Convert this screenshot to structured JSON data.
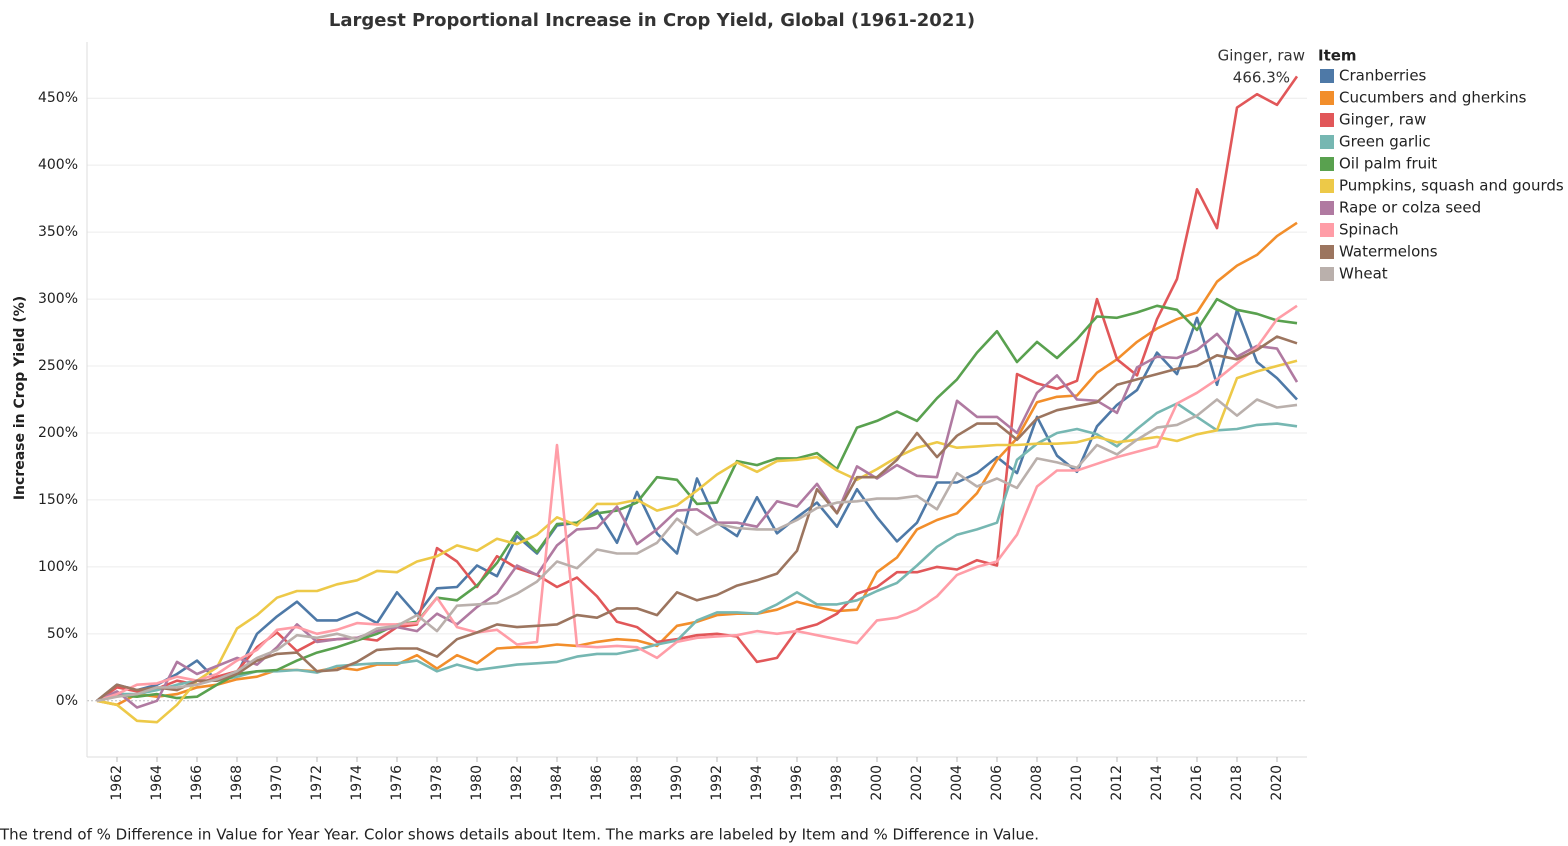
{
  "chart_data": {
    "type": "line",
    "title": "Largest Proportional Increase in Crop Yield, Global (1961-2021)",
    "y_label": "Increase in Crop Yield (%)",
    "legend_title": "Item",
    "legend_position": "right",
    "caption": "The trend of % Difference in Value for Year Year.  Color shows details about Item.  The marks are labeled by Item and % Difference in Value.",
    "grid": true,
    "x": [
      1961,
      1962,
      1963,
      1964,
      1965,
      1966,
      1967,
      1968,
      1969,
      1970,
      1971,
      1972,
      1973,
      1974,
      1975,
      1976,
      1977,
      1978,
      1979,
      1980,
      1981,
      1982,
      1983,
      1984,
      1985,
      1986,
      1987,
      1988,
      1989,
      1990,
      1991,
      1992,
      1993,
      1994,
      1995,
      1996,
      1997,
      1998,
      1999,
      2000,
      2001,
      2002,
      2003,
      2004,
      2005,
      2006,
      2007,
      2008,
      2009,
      2010,
      2011,
      2012,
      2013,
      2014,
      2015,
      2016,
      2017,
      2018,
      2019,
      2020,
      2021
    ],
    "xlim": [
      1960.5,
      2021.5
    ],
    "xticks": [
      1962,
      1964,
      1966,
      1968,
      1970,
      1972,
      1974,
      1976,
      1978,
      1980,
      1982,
      1984,
      1986,
      1988,
      1990,
      1992,
      1994,
      1996,
      1998,
      2000,
      2002,
      2004,
      2006,
      2008,
      2010,
      2012,
      2014,
      2016,
      2018,
      2020
    ],
    "ylim": [
      -42,
      492
    ],
    "yticks": [
      {
        "value": 0,
        "label": "0%"
      },
      {
        "value": 50,
        "label": "50%"
      },
      {
        "value": 100,
        "label": "100%"
      },
      {
        "value": 150,
        "label": "150%"
      },
      {
        "value": 200,
        "label": "200%"
      },
      {
        "value": 250,
        "label": "250%"
      },
      {
        "value": 300,
        "label": "300%"
      },
      {
        "value": 350,
        "label": "350%"
      },
      {
        "value": 400,
        "label": "400%"
      },
      {
        "value": 450,
        "label": "450%"
      }
    ],
    "series": [
      {
        "name": "Cranberries",
        "color": "#4e79a7",
        "values": [
          0,
          12,
          8,
          12,
          20,
          30,
          15,
          20,
          50,
          63,
          74,
          60,
          60,
          66,
          58,
          81,
          64,
          84,
          85,
          101,
          93,
          123,
          110,
          131,
          133,
          142,
          118,
          156,
          125,
          110,
          166,
          133,
          123,
          152,
          125,
          137,
          148,
          130,
          158,
          137,
          119,
          133,
          163,
          163,
          170,
          182,
          170,
          212,
          183,
          171,
          205,
          221,
          232,
          260,
          244,
          286,
          236,
          292,
          253,
          241,
          225
        ]
      },
      {
        "name": "Cucumbers and gherkins",
        "color": "#f28e2b",
        "values": [
          0,
          -3,
          5,
          3,
          5,
          10,
          12,
          16,
          18,
          23,
          23,
          22,
          25,
          23,
          27,
          27,
          34,
          24,
          34,
          28,
          39,
          40,
          40,
          42,
          41,
          44,
          46,
          45,
          41,
          56,
          59,
          64,
          65,
          65,
          68,
          74,
          70,
          67,
          68,
          96,
          107,
          128,
          135,
          140,
          155,
          180,
          196,
          223,
          227,
          228,
          245,
          255,
          268,
          278,
          285,
          290,
          313,
          325,
          333,
          347,
          357
        ]
      },
      {
        "name": "Ginger, raw",
        "color": "#e15759",
        "values": [
          0,
          10,
          7,
          9,
          15,
          12,
          18,
          22,
          40,
          51,
          37,
          45,
          46,
          47,
          45,
          55,
          57,
          114,
          104,
          85,
          108,
          99,
          94,
          85,
          92,
          78,
          59,
          55,
          44,
          46,
          49,
          50,
          48,
          29,
          32,
          53,
          57,
          65,
          80,
          85,
          96,
          96,
          100,
          98,
          105,
          101,
          244,
          237,
          233,
          239,
          300,
          255,
          243,
          285,
          315,
          382,
          353,
          443,
          453,
          445,
          466.3
        ],
        "value_labels": [
          null,
          null,
          null,
          null,
          null,
          null,
          null,
          null,
          null,
          null,
          null,
          null,
          null,
          null,
          null,
          null,
          null,
          null,
          null,
          null,
          null,
          null,
          null,
          null,
          null,
          null,
          null,
          null,
          null,
          null,
          null,
          null,
          null,
          null,
          null,
          null,
          null,
          null,
          null,
          null,
          null,
          null,
          null,
          null,
          null,
          null,
          null,
          null,
          null,
          null,
          null,
          null,
          null,
          null,
          null,
          null,
          null,
          null,
          null,
          null,
          "466.3%"
        ]
      },
      {
        "name": "Green garlic",
        "color": "#76b7b2",
        "values": [
          0,
          5,
          5,
          8,
          12,
          15,
          15,
          18,
          22,
          22,
          23,
          21,
          26,
          27,
          28,
          28,
          30,
          22,
          27,
          23,
          25,
          27,
          28,
          29,
          33,
          35,
          35,
          38,
          42,
          45,
          60,
          66,
          66,
          65,
          72,
          81,
          72,
          72,
          75,
          82,
          88,
          101,
          115,
          124,
          128,
          133,
          180,
          192,
          200,
          203,
          199,
          190,
          203,
          215,
          222,
          212,
          202,
          203,
          206,
          207,
          205
        ]
      },
      {
        "name": "Oil palm fruit",
        "color": "#59a14f",
        "values": [
          0,
          4,
          3,
          5,
          2,
          3,
          12,
          20,
          22,
          23,
          30,
          36,
          40,
          45,
          50,
          57,
          59,
          77,
          75,
          86,
          103,
          126,
          111,
          132,
          133,
          140,
          142,
          148,
          167,
          165,
          147,
          148,
          179,
          176,
          181,
          181,
          185,
          173,
          204,
          209,
          216,
          209,
          226,
          240,
          260,
          276,
          253,
          268,
          256,
          270,
          287,
          286,
          290,
          295,
          292,
          277,
          300,
          292,
          289,
          284,
          282
        ]
      },
      {
        "name": "Pumpkins, squash and gourds",
        "color": "#edc948",
        "values": [
          0,
          -3,
          -15,
          -16,
          -3,
          15,
          25,
          54,
          64,
          77,
          82,
          82,
          87,
          90,
          97,
          96,
          104,
          108,
          116,
          112,
          121,
          117,
          124,
          137,
          131,
          147,
          147,
          150,
          142,
          146,
          157,
          169,
          178,
          171,
          179,
          180,
          182,
          172,
          165,
          173,
          182,
          189,
          193,
          189,
          190,
          191,
          191,
          192,
          192,
          193,
          197,
          193,
          195,
          197,
          194,
          199,
          202,
          241,
          246,
          250,
          254
        ]
      },
      {
        "name": "Rape or colza seed",
        "color": "#b07aa1",
        "values": [
          0,
          7,
          -5,
          0,
          29,
          20,
          26,
          32,
          27,
          40,
          57,
          44,
          46,
          47,
          52,
          55,
          52,
          65,
          57,
          70,
          80,
          101,
          94,
          116,
          128,
          129,
          145,
          117,
          128,
          142,
          143,
          133,
          133,
          130,
          149,
          145,
          162,
          140,
          175,
          166,
          176,
          168,
          167,
          224,
          212,
          212,
          200,
          230,
          243,
          225,
          224,
          215,
          249,
          257,
          256,
          262,
          274,
          257,
          265,
          263,
          238
        ]
      },
      {
        "name": "Spinach",
        "color": "#ff9da7",
        "values": [
          0,
          5,
          12,
          13,
          18,
          15,
          20,
          30,
          38,
          53,
          55,
          50,
          53,
          58,
          57,
          57,
          58,
          77,
          55,
          51,
          53,
          42,
          44,
          191,
          41,
          40,
          41,
          40,
          32,
          44,
          47,
          48,
          49,
          52,
          50,
          52,
          49,
          46,
          43,
          60,
          62,
          68,
          78,
          94,
          100,
          104,
          124,
          160,
          172,
          172,
          177,
          182,
          186,
          190,
          222,
          230,
          240,
          252,
          264,
          285,
          295
        ]
      },
      {
        "name": "Watermelons",
        "color": "#9c755f",
        "values": [
          0,
          12,
          8,
          10,
          8,
          15,
          15,
          20,
          30,
          35,
          36,
          22,
          23,
          29,
          38,
          39,
          39,
          33,
          46,
          51,
          57,
          55,
          56,
          57,
          64,
          62,
          69,
          69,
          64,
          81,
          75,
          79,
          86,
          90,
          95,
          112,
          158,
          140,
          167,
          167,
          180,
          200,
          182,
          198,
          207,
          207,
          195,
          211,
          217,
          220,
          223,
          236,
          240,
          244,
          248,
          250,
          258,
          255,
          262,
          272,
          267
        ]
      },
      {
        "name": "Wheat",
        "color": "#bab0ac",
        "values": [
          0,
          3,
          5,
          10,
          10,
          12,
          16,
          22,
          32,
          38,
          49,
          47,
          50,
          46,
          54,
          56,
          64,
          52,
          71,
          72,
          73,
          80,
          89,
          104,
          99,
          113,
          110,
          110,
          118,
          136,
          124,
          132,
          129,
          128,
          128,
          135,
          144,
          148,
          149,
          151,
          151,
          153,
          143,
          170,
          160,
          166,
          159,
          181,
          178,
          174,
          191,
          184,
          195,
          204,
          206,
          213,
          225,
          213,
          225,
          219,
          221
        ]
      }
    ]
  }
}
